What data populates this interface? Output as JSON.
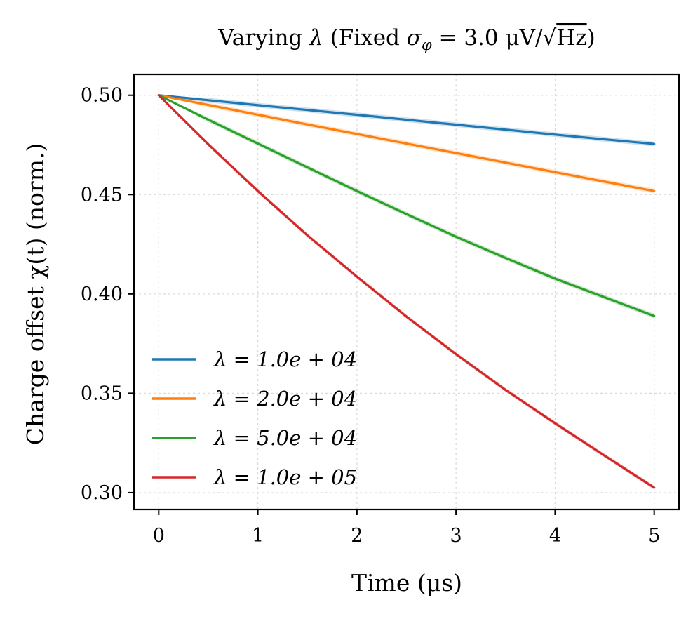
{
  "chart_data": {
    "type": "line",
    "title": "Varying λ (Fixed σ_φ = 3.0 μV/√Hz)",
    "title_parts": {
      "prefix": "Varying ",
      "lambda": "λ",
      "fixed": " (Fixed ",
      "sigma": "σ",
      "sigma_sub": "φ",
      "equals_value": " = 3.0 ",
      "unit": "μV/",
      "sqrt": "√",
      "hz": "Hz",
      "close": ")"
    },
    "xlabel": "Time (μs)",
    "ylabel": "Charge offset χ(t) (norm.)",
    "xlim": [
      -0.25,
      5.25
    ],
    "ylim": [
      0.2915,
      0.5105
    ],
    "x_ticks": [
      0,
      1,
      2,
      3,
      4,
      5
    ],
    "x_tick_labels": [
      "0",
      "1",
      "2",
      "3",
      "4",
      "5"
    ],
    "y_ticks": [
      0.3,
      0.35,
      0.4,
      0.45,
      0.5
    ],
    "y_tick_labels": [
      "0.30",
      "0.35",
      "0.40",
      "0.45",
      "0.50"
    ],
    "grid": true,
    "legend_position": "lower-left",
    "x": [
      0,
      0.5,
      1,
      1.5,
      2,
      2.5,
      3,
      3.5,
      4,
      4.5,
      5
    ],
    "series": [
      {
        "name": "λ = 1.0e + 04",
        "color": "#1f77b4",
        "values": [
          0.5,
          0.4975,
          0.495,
          0.4926,
          0.4902,
          0.4877,
          0.4852,
          0.4827,
          0.4802,
          0.4778,
          0.4755
        ],
        "band": 0.0012
      },
      {
        "name": "λ = 2.0e + 04",
        "color": "#ff7f0e",
        "values": [
          0.5,
          0.4951,
          0.4902,
          0.4853,
          0.4805,
          0.4757,
          0.4709,
          0.4661,
          0.4613,
          0.4565,
          0.4518
        ],
        "band": 0.0012
      },
      {
        "name": "λ = 5.0e + 04",
        "color": "#2ca02c",
        "values": [
          0.5,
          0.4877,
          0.4757,
          0.4637,
          0.4518,
          0.4402,
          0.4288,
          0.4181,
          0.4077,
          0.3983,
          0.3889
        ],
        "band": 0.0012
      },
      {
        "name": "λ = 1.0e + 05",
        "color": "#d62728",
        "values": [
          0.5,
          0.4753,
          0.4518,
          0.4295,
          0.4087,
          0.3886,
          0.3697,
          0.3517,
          0.3349,
          0.3186,
          0.3025
        ],
        "band": 0.001
      }
    ]
  }
}
